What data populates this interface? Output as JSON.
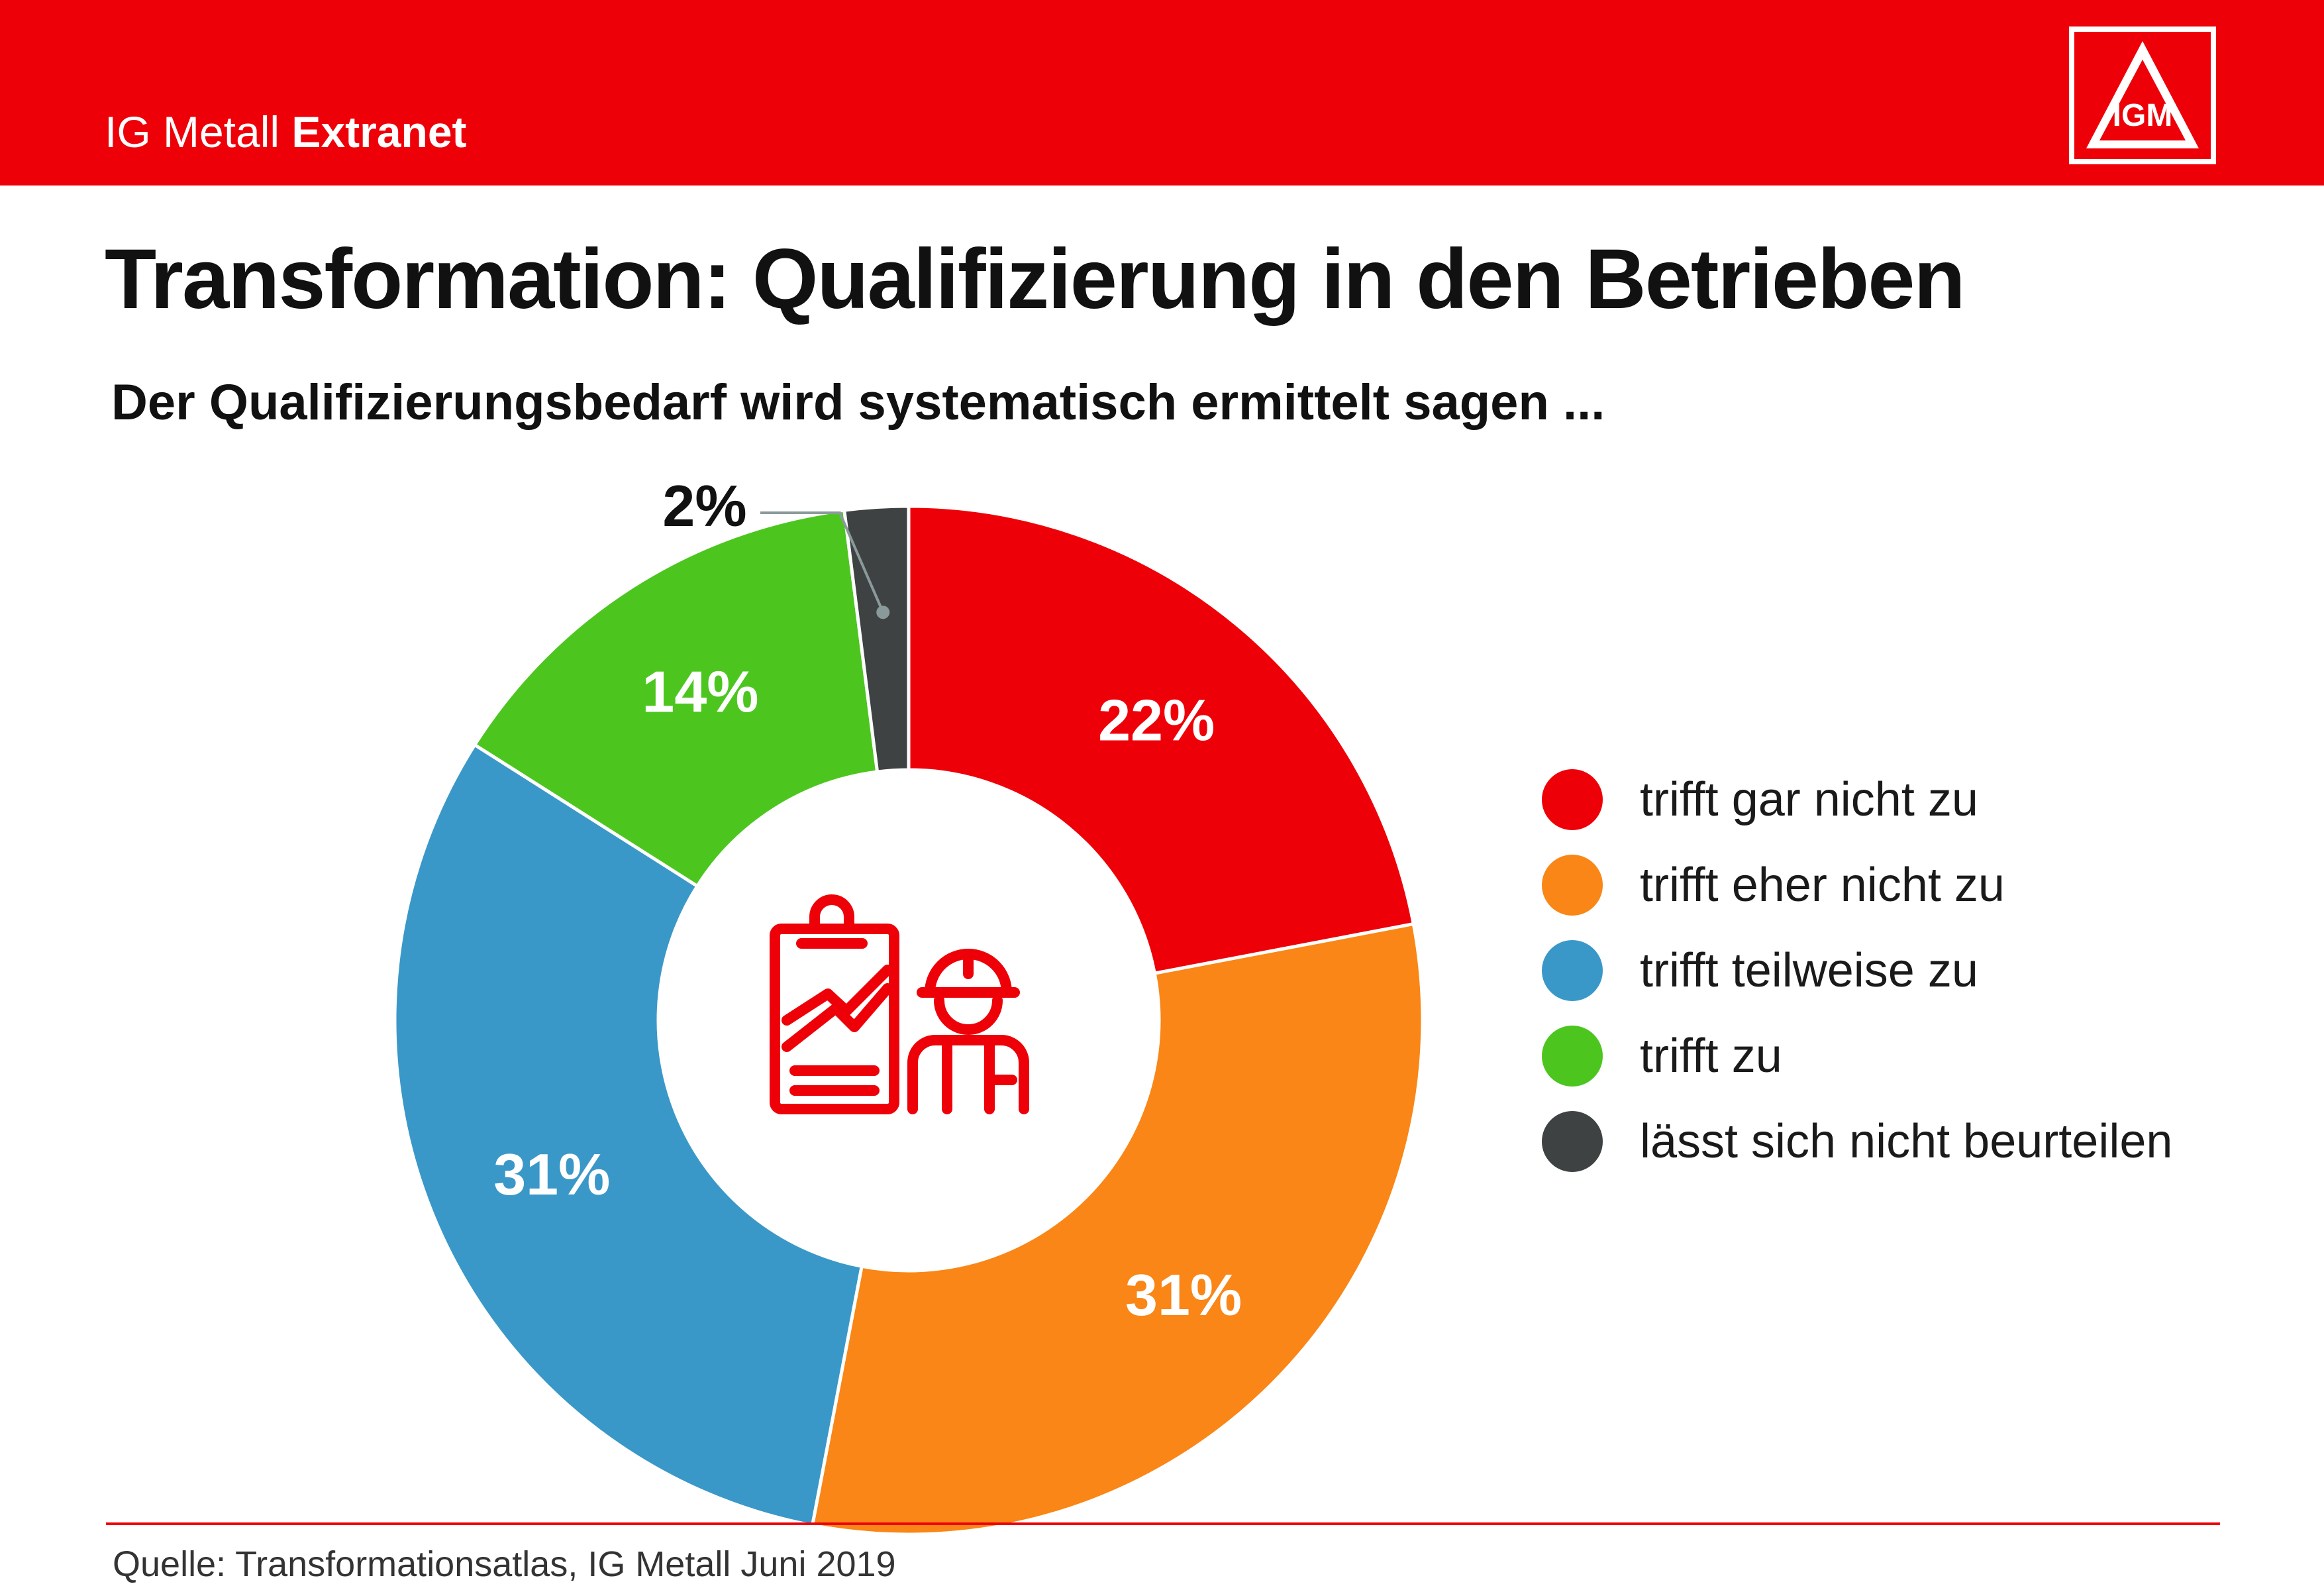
{
  "header": {
    "brand_regular": "IG Metall",
    "brand_bold": "Extranet",
    "logo_text": "IGM",
    "background_color": "#ee0008"
  },
  "title": "Transformation: Qualifizierung in den Betrieben",
  "subtitle": "Der Qualifizierungsbedarf wird systematisch ermittelt sagen ...",
  "chart_data": {
    "type": "pie",
    "style": "donut",
    "start": "top, clockwise",
    "center_icon": "clipboard-and-worker-icon",
    "slices": [
      {
        "label": "trifft gar nicht zu",
        "value": 22,
        "display": "22%",
        "color": "#ee0008"
      },
      {
        "label": "trifft eher nicht zu",
        "value": 31,
        "display": "31%",
        "color": "#f98616"
      },
      {
        "label": "trifft teilweise zu",
        "value": 31,
        "display": "31%",
        "color": "#3a98c8"
      },
      {
        "label": "trifft zu",
        "value": 14,
        "display": "14%",
        "color": "#4cc61f"
      },
      {
        "label": "lässt sich nicht beurteilen",
        "value": 2,
        "display": "2%",
        "color": "#3f4243"
      }
    ],
    "legend_placement": "right"
  },
  "footer": {
    "source": "Quelle: Transformationsatlas, IG Metall Juni 2019",
    "rule_color": "#ee0008"
  }
}
